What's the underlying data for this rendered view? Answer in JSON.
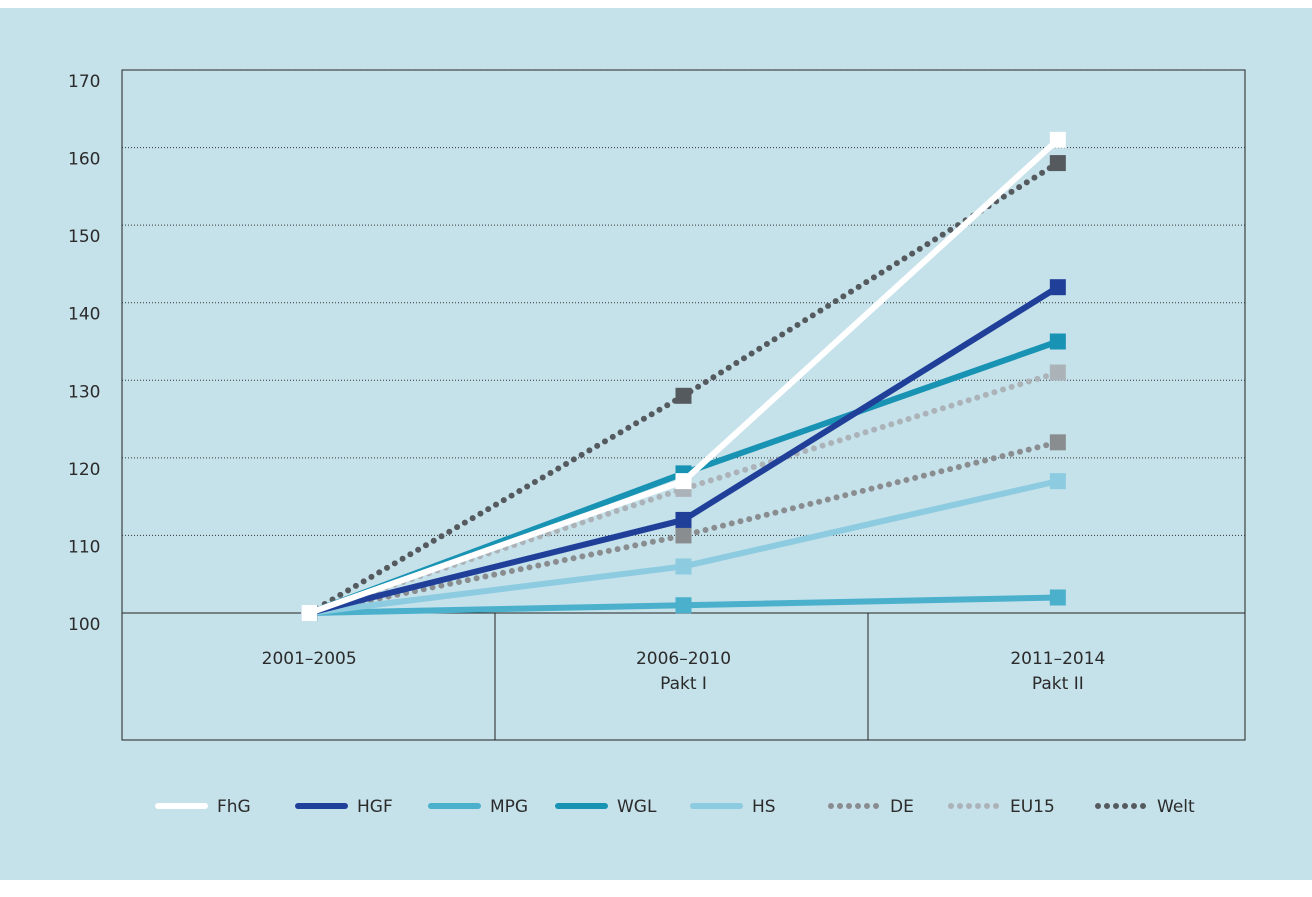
{
  "chart_data": {
    "type": "line",
    "categories": [
      [
        "2001–2005"
      ],
      [
        "2006–2010",
        "Pakt I"
      ],
      [
        "2011–2014",
        "Pakt II"
      ]
    ],
    "ylim": [
      100,
      170
    ],
    "yticks": [
      100,
      110,
      120,
      130,
      140,
      150,
      160,
      170
    ],
    "grid": true,
    "series": [
      {
        "name": "Welt",
        "color": "#555a5e",
        "style": "dotted",
        "values": [
          100,
          128,
          158
        ]
      },
      {
        "name": "DE",
        "color": "#8a8d90",
        "style": "dotted",
        "values": [
          100,
          110,
          122
        ]
      },
      {
        "name": "EU15",
        "color": "#acb3b8",
        "style": "dotted",
        "values": [
          100,
          116,
          131
        ]
      },
      {
        "name": "MPG",
        "color": "#4ab0cc",
        "style": "solid",
        "values": [
          100,
          101,
          102
        ]
      },
      {
        "name": "HS",
        "color": "#8ccbe0",
        "style": "solid",
        "values": [
          100,
          106,
          117
        ]
      },
      {
        "name": "WGL",
        "color": "#1893b3",
        "style": "solid",
        "values": [
          100,
          118,
          135
        ]
      },
      {
        "name": "HGF",
        "color": "#1f3f99",
        "style": "solid",
        "values": [
          100,
          112,
          142
        ]
      },
      {
        "name": "FhG",
        "color": "#ffffff",
        "style": "solid",
        "values": [
          100,
          117,
          161
        ]
      }
    ],
    "legend_order": [
      "FhG",
      "HGF",
      "MPG",
      "WGL",
      "HS",
      "DE",
      "EU15",
      "Welt"
    ]
  }
}
